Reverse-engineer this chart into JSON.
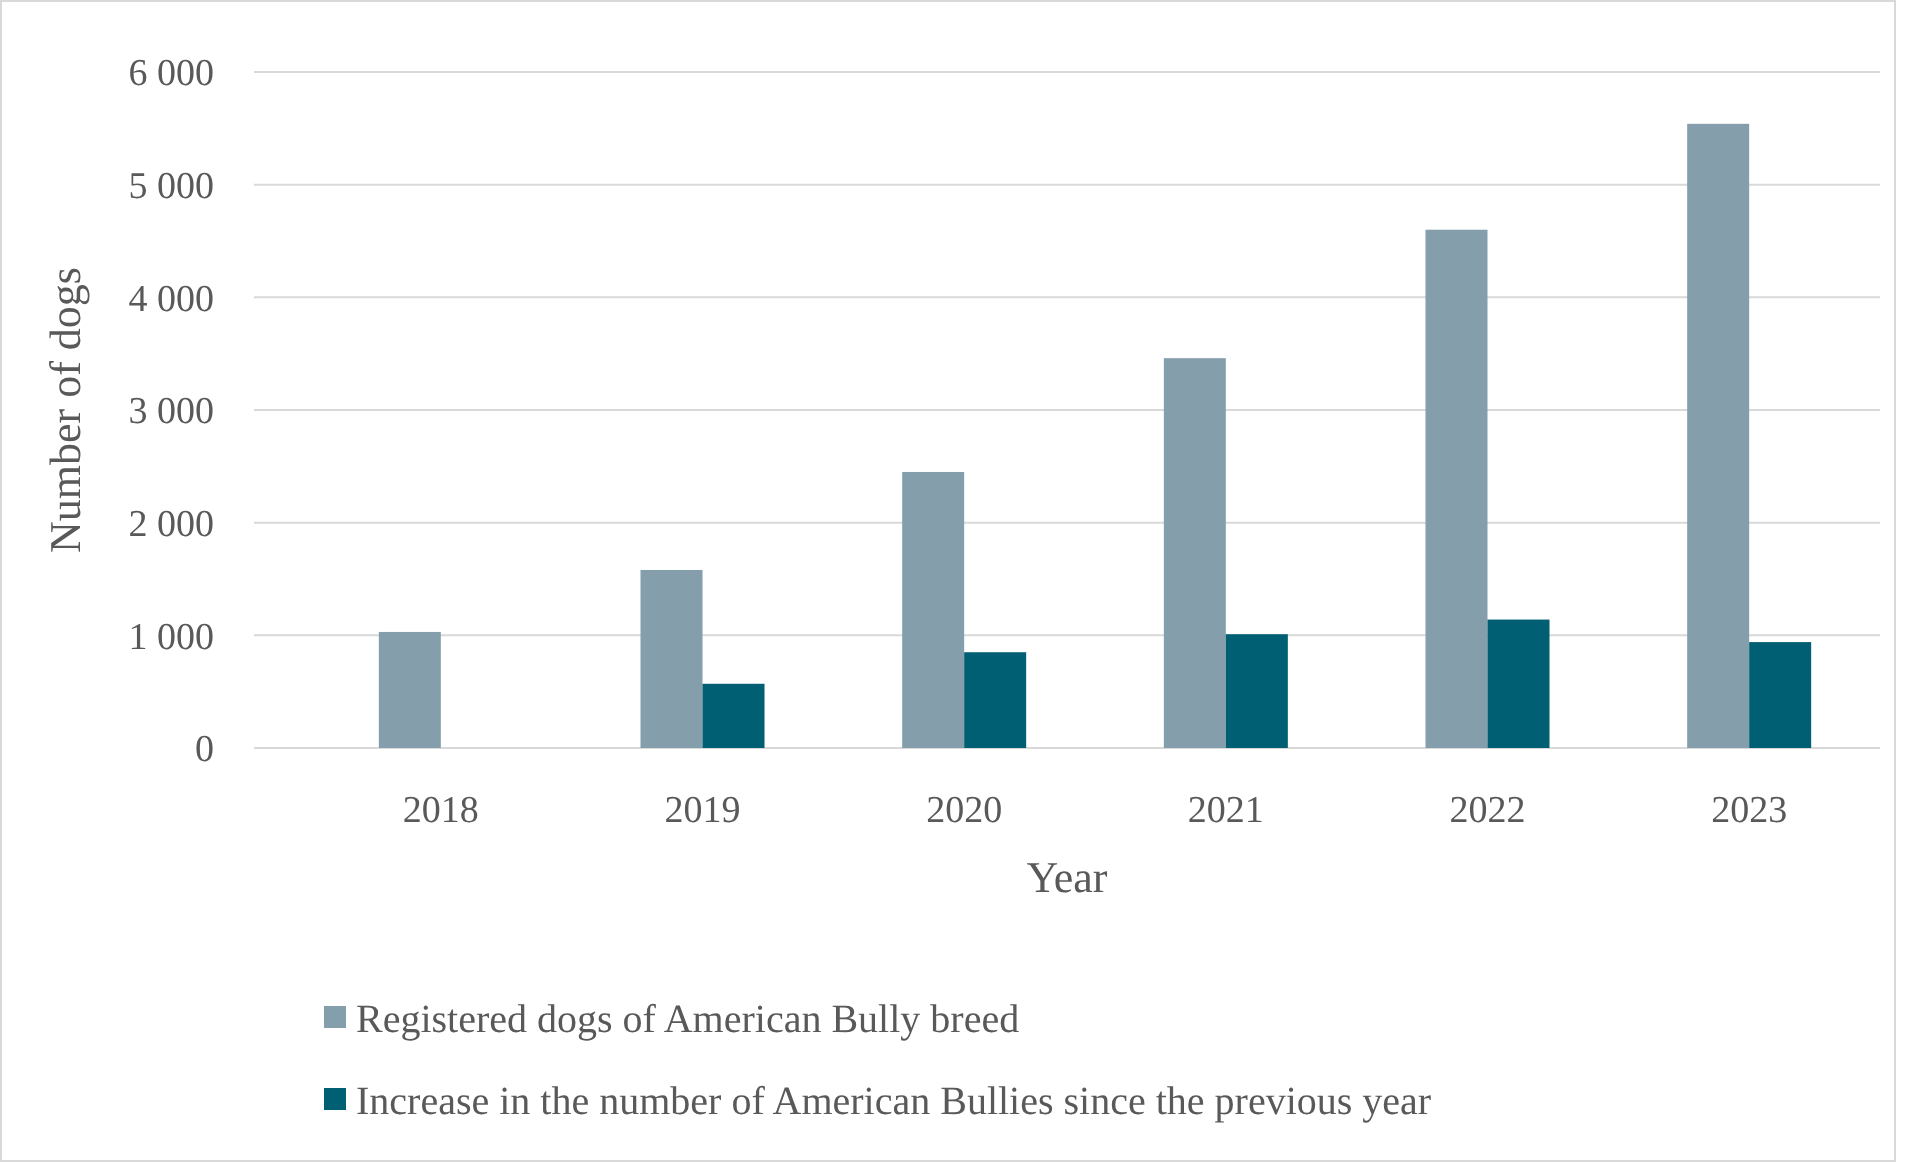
{
  "chart_data": {
    "type": "bar",
    "xlabel": "Year",
    "ylabel": "Number of dogs",
    "categories": [
      "2018",
      "2019",
      "2020",
      "2021",
      "2022",
      "2023"
    ],
    "series": [
      {
        "name": "Registered dogs of American Bully breed",
        "color": "#849eac",
        "values": [
          1030,
          1580,
          2450,
          3460,
          4600,
          5540
        ]
      },
      {
        "name": "Increase in the number of American Bullies since the previous year",
        "color": "#005f73",
        "values": [
          null,
          570,
          850,
          1010,
          1140,
          940
        ]
      }
    ],
    "ylim": [
      0,
      6000
    ],
    "yticks": [
      0,
      {
        "value": 1000,
        "label": "1 000"
      },
      {
        "value": 2000,
        "label": "2 000"
      },
      {
        "value": 3000,
        "label": "3 000"
      },
      {
        "value": 4000,
        "label": "4 000"
      },
      {
        "value": 5000,
        "label": "5 000"
      },
      {
        "value": 6000,
        "label": "6 000"
      }
    ],
    "grid": "y",
    "legend": "bottom"
  }
}
